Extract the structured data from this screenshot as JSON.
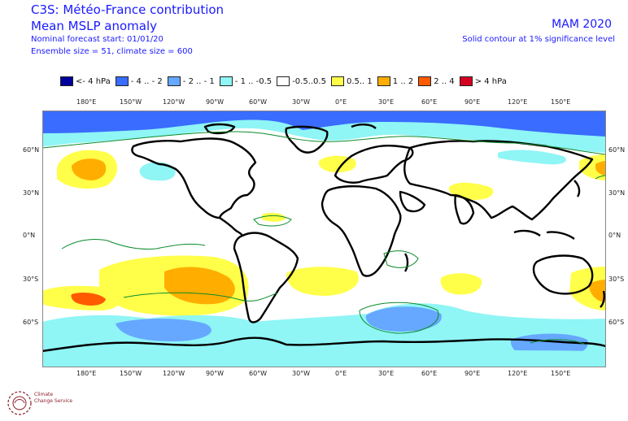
{
  "header": {
    "title_line1": "C3S: Météo-France contribution",
    "title_line2": "Mean MSLP anomaly",
    "info_line1": "Nominal forecast start: 01/01/20",
    "info_line2": "Ensemble size = 51, climate size = 600",
    "period": "MAM 2020",
    "note": "Solid contour at 1% significance level"
  },
  "legend": [
    {
      "label": "<- 4 hPa",
      "color": "#00009e"
    },
    {
      "label": "- 4 .. - 2",
      "color": "#3a6cff"
    },
    {
      "label": "- 2 .. - 1",
      "color": "#66a8ff"
    },
    {
      "label": "- 1 .. -0.5",
      "color": "#8ff5f5"
    },
    {
      "label": "-0.5..0.5",
      "color": "#ffffff"
    },
    {
      "label": "0.5.. 1",
      "color": "#ffff4a"
    },
    {
      "label": "1 .. 2",
      "color": "#ffae00"
    },
    {
      "label": "2 .. 4",
      "color": "#ff5a00"
    },
    {
      "label": "> 4 hPa",
      "color": "#d60020"
    }
  ],
  "axes": {
    "lon_labels": [
      "180°E",
      "150°W",
      "120°W",
      "90°W",
      "60°W",
      "30°W",
      "0°E",
      "30°E",
      "60°E",
      "90°E",
      "120°E",
      "150°E"
    ],
    "lat_labels": [
      "60°N",
      "30°N",
      "0°N",
      "30°S",
      "60°S"
    ]
  },
  "logo": {
    "line1": "Climate",
    "line2": "Change Service"
  }
}
